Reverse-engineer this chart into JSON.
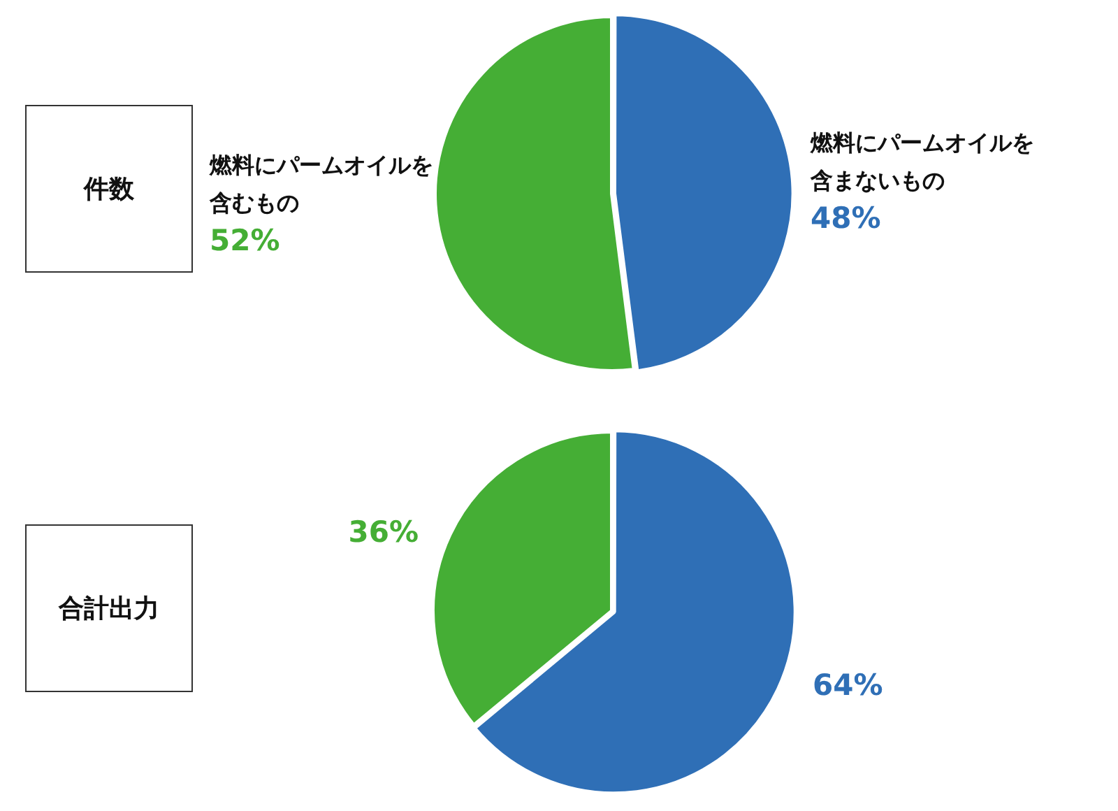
{
  "chart_data": [
    {
      "type": "pie",
      "title": "件数",
      "categories": [
        "燃料にパームオイルを含まないもの",
        "燃料にパームオイルを含むもの"
      ],
      "values": [
        48,
        52
      ],
      "colors": [
        "#2f6fb6",
        "#45ae35"
      ],
      "value_labels": [
        "48%",
        "52%"
      ]
    },
    {
      "type": "pie",
      "title": "合計出力",
      "categories": [
        null,
        null
      ],
      "values": [
        64,
        36
      ],
      "colors": [
        "#2f6fb6",
        "#45ae35"
      ],
      "value_labels": [
        "64%",
        "36%"
      ]
    }
  ]
}
